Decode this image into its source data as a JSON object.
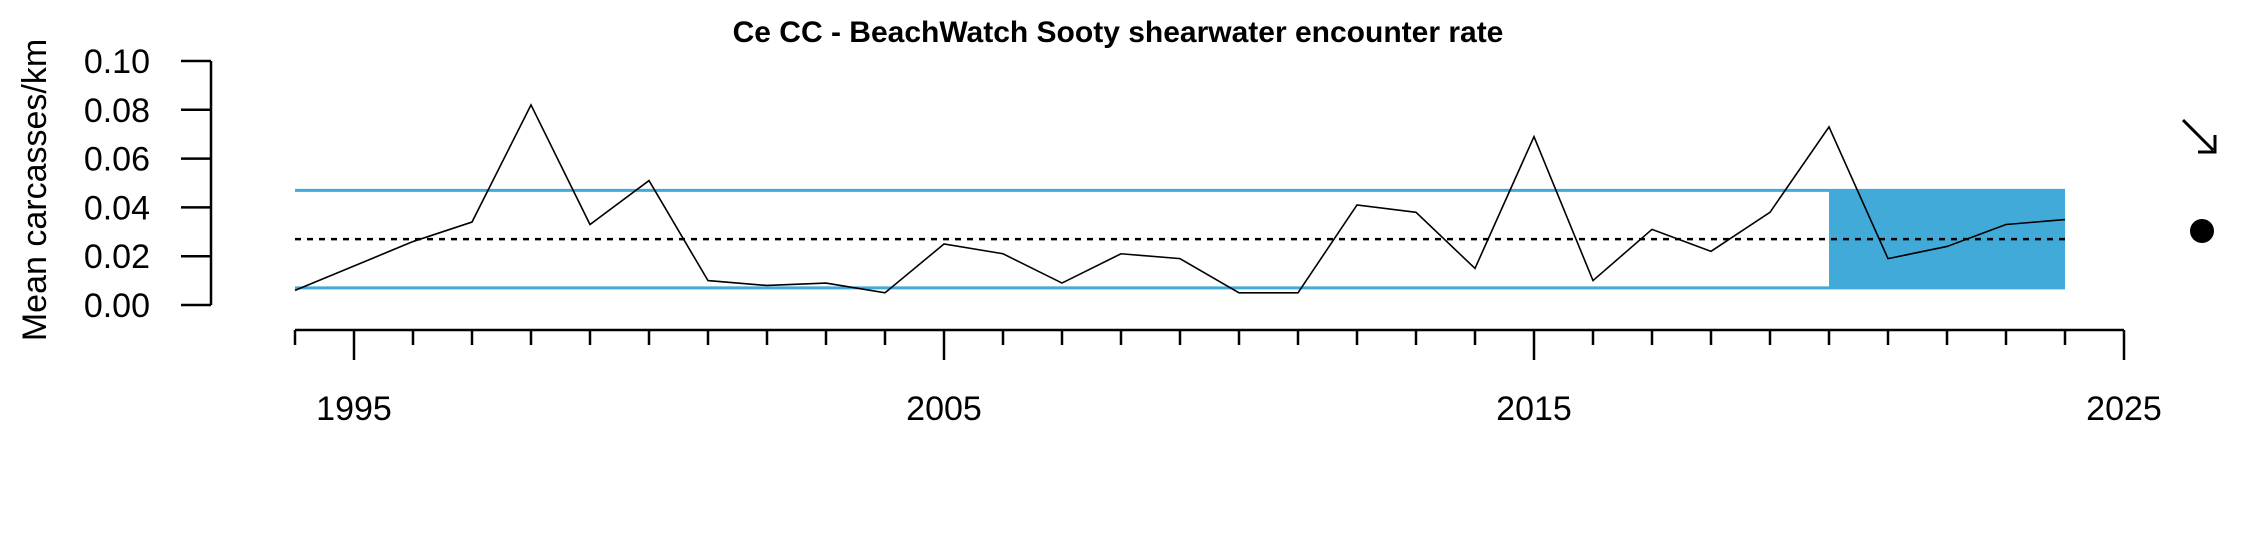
{
  "chart_data": {
    "type": "line",
    "title": "Ce CC - BeachWatch Sooty shearwater encounter rate",
    "xlabel": "",
    "ylabel": "Mean carcasses/km",
    "xlim": [
      1994,
      2024
    ],
    "ylim": [
      0,
      0.1
    ],
    "x_ticks": [
      "1995",
      "2005",
      "2015",
      "2025"
    ],
    "y_ticks": [
      "0.00",
      "0.02",
      "0.04",
      "0.06",
      "0.08",
      "0.10"
    ],
    "grid": false,
    "series": [
      {
        "x": [
          1994,
          1995,
          1996,
          1997,
          1998,
          1999,
          2000,
          2001,
          2002,
          2003,
          2004,
          2005,
          2006,
          2007,
          2008,
          2009,
          2010,
          2011,
          2012,
          2013,
          2014,
          2015,
          2016,
          2017,
          2018,
          2019,
          2020,
          2021,
          2022,
          2023,
          2024
        ],
        "values": [
          0.006,
          0.016,
          0.026,
          0.034,
          0.082,
          0.033,
          0.051,
          0.01,
          0.008,
          0.009,
          0.005,
          0.025,
          0.021,
          0.009,
          0.021,
          0.019,
          0.005,
          0.005,
          0.041,
          0.038,
          0.015,
          0.069,
          0.01,
          0.031,
          0.022,
          0.038,
          0.073,
          0.019,
          0.024,
          0.033,
          0.035
        ],
        "color": "#000000"
      }
    ],
    "mean_line": 0.027,
    "upper_band": 0.047,
    "lower_band": 0.007,
    "highlight_period": [
      2020,
      2024
    ],
    "band_color": "#41aad8",
    "trend_indicator": "arrow-down-right",
    "status_indicator": "filled-circle"
  }
}
